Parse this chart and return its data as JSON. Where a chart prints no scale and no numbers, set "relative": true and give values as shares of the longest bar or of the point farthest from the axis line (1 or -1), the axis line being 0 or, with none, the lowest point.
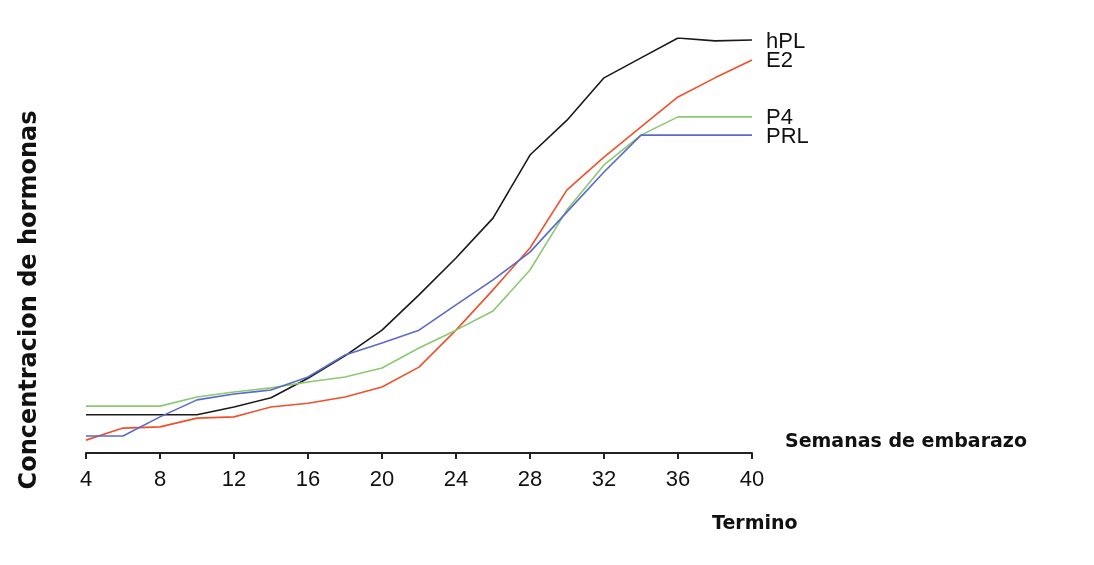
{
  "chart_data": {
    "type": "line",
    "relative": true,
    "xlabel": "Semanas de embarazo",
    "ylabel": "Concentracion de hormonas",
    "x": [
      4,
      6,
      8,
      10,
      12,
      14,
      16,
      18,
      20,
      22,
      24,
      26,
      28,
      30,
      32,
      34,
      36,
      38,
      40
    ],
    "xlim": [
      4,
      40
    ],
    "xticks": [
      4,
      8,
      12,
      16,
      20,
      24,
      28,
      32,
      36,
      40
    ],
    "series": [
      {
        "name": "hPL",
        "color": "#1a1a1a",
        "values": [
          0.092,
          0.092,
          0.092,
          0.092,
          0.111,
          0.133,
          0.18,
          0.234,
          0.296,
          0.381,
          0.47,
          0.566,
          0.718,
          0.802,
          0.904,
          0.952,
          1,
          0.993,
          0.995
        ]
      },
      {
        "name": "E2",
        "color": "#f0502a",
        "values": [
          0.031,
          0.06,
          0.063,
          0.084,
          0.087,
          0.111,
          0.12,
          0.135,
          0.159,
          0.207,
          0.296,
          0.393,
          0.494,
          0.634,
          0.713,
          0.786,
          0.858,
          0.904,
          0.947
        ]
      },
      {
        "name": "P4",
        "color": "#8cc872",
        "values": [
          0.113,
          0.113,
          0.113,
          0.135,
          0.147,
          0.157,
          0.171,
          0.183,
          0.205,
          0.253,
          0.296,
          0.342,
          0.441,
          0.586,
          0.694,
          0.766,
          0.81,
          0.81,
          0.81
        ]
      },
      {
        "name": "PRL",
        "color": "#5a6ac8",
        "values": [
          0.041,
          0.041,
          0.087,
          0.128,
          0.142,
          0.152,
          0.183,
          0.236,
          0.265,
          0.296,
          0.357,
          0.417,
          0.484,
          0.581,
          0.677,
          0.766,
          0.766,
          0.766,
          0.766
        ]
      }
    ],
    "annotations": [
      "Termino"
    ],
    "grid": false,
    "legend": false
  }
}
